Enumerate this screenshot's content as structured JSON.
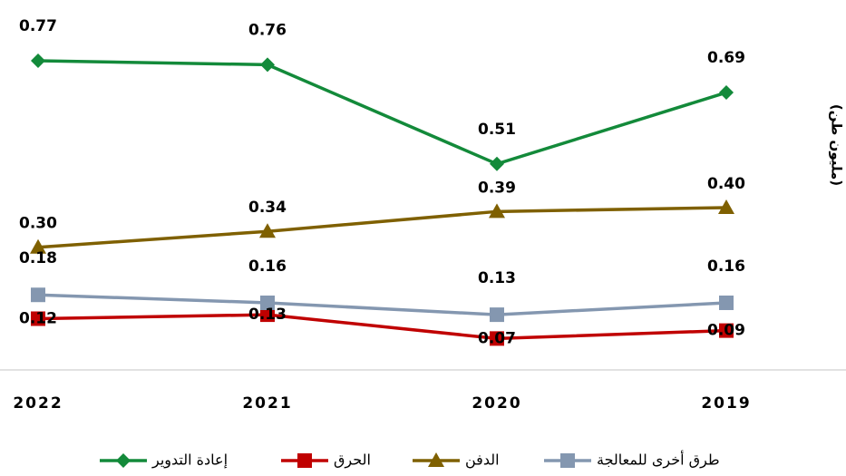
{
  "chart_data": {
    "type": "line",
    "y_label": "(مليون طن)",
    "categories": [
      "2022",
      "2021",
      "2020",
      "2019"
    ],
    "ylim": [
      0,
      0.85
    ],
    "series": [
      {
        "name": "إعادة التدوير",
        "color": "#138a3a",
        "marker": "diamond",
        "values": [
          0.77,
          0.76,
          0.51,
          0.69
        ],
        "value_labels": [
          "0.77",
          "0.76",
          "0.51",
          "0.69"
        ]
      },
      {
        "name": "الحرق",
        "color": "#c00000",
        "marker": "square",
        "values": [
          0.12,
          0.13,
          0.07,
          0.09
        ],
        "value_labels": [
          "0.12",
          "0.13",
          "0.07",
          "0.09"
        ]
      },
      {
        "name": "الدفن",
        "color": "#7f6000",
        "marker": "triangle",
        "values": [
          0.3,
          0.34,
          0.39,
          0.4
        ],
        "value_labels": [
          "0.30",
          "0.34",
          "0.39",
          "0.40"
        ]
      },
      {
        "name": "طرق أخرى للمعالجة",
        "color": "#8497b0",
        "marker": "square",
        "values": [
          0.18,
          0.16,
          0.13,
          0.16
        ],
        "value_labels": [
          "0.18",
          "0.16",
          "0.13",
          "0.16"
        ]
      }
    ],
    "legend": "bottom"
  }
}
